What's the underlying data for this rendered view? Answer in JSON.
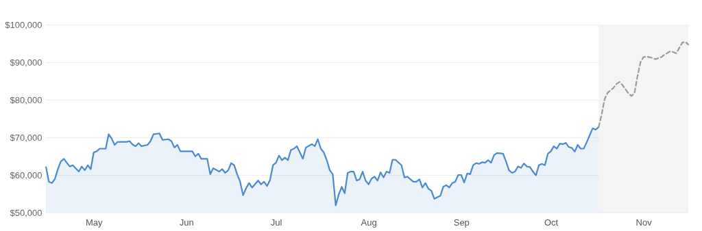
{
  "chart_data": {
    "type": "area",
    "grid": "y",
    "xlim": [
      "--04-15",
      "--11-16"
    ],
    "xticks": [
      {
        "value": "--05-01",
        "label": "May"
      },
      {
        "value": "--06-01",
        "label": "Jun"
      },
      {
        "value": "--07-01",
        "label": "Jul"
      },
      {
        "value": "--08-01",
        "label": "Aug"
      },
      {
        "value": "--09-01",
        "label": "Sep"
      },
      {
        "value": "--10-01",
        "label": "Oct"
      },
      {
        "value": "--11-01",
        "label": "Nov"
      }
    ],
    "ylim": [
      50000,
      100000
    ],
    "yticks": [
      {
        "value": 50000,
        "label": "$50,000"
      },
      {
        "value": 60000,
        "label": "$60,000"
      },
      {
        "value": 70000,
        "label": "$70,000"
      },
      {
        "value": 80000,
        "label": "$80,000"
      },
      {
        "value": 90000,
        "label": "$90,000"
      },
      {
        "value": 100000,
        "label": "$100,000"
      }
    ],
    "bands": [
      {
        "axis": "x",
        "from": "--10-17",
        "to": "--11-16",
        "color": "#f4f4f4"
      }
    ],
    "series": [
      {
        "color": "#4a88cf",
        "x": [
          "--04-15",
          "--04-16",
          "--04-17",
          "--04-18",
          "--04-19",
          "--04-20",
          "--04-21",
          "--04-22",
          "--04-23",
          "--04-24",
          "--04-26",
          "--04-27",
          "--04-28",
          "--04-29",
          "--04-30",
          "--05-01",
          "--05-02",
          "--05-03",
          "--05-05",
          "--05-06",
          "--05-07",
          "--05-08",
          "--05-09",
          "--05-12",
          "--05-13",
          "--05-14",
          "--05-15",
          "--05-16",
          "--05-17",
          "--05-19",
          "--05-20",
          "--05-21",
          "--05-23",
          "--05-24",
          "--05-26",
          "--05-27",
          "--05-28",
          "--05-29",
          "--05-30",
          "--06-01",
          "--06-03",
          "--06-04",
          "--06-05",
          "--06-06",
          "--06-08",
          "--06-09",
          "--06-10",
          "--06-12",
          "--06-13",
          "--06-14",
          "--06-15",
          "--06-16",
          "--06-17",
          "--06-18",
          "--06-19",
          "--06-20",
          "--06-21",
          "--06-22",
          "--06-23",
          "--06-25",
          "--06-26",
          "--06-27",
          "--06-28",
          "--06-29",
          "--06-30",
          "--07-01",
          "--07-02",
          "--07-03",
          "--07-04",
          "--07-05",
          "--07-06",
          "--07-07",
          "--07-08",
          "--07-09",
          "--07-10",
          "--07-11",
          "--07-13",
          "--07-14",
          "--07-15",
          "--07-16",
          "--07-17",
          "--07-18",
          "--07-19",
          "--07-20",
          "--07-21",
          "--07-22",
          "--07-23",
          "--07-24",
          "--07-25",
          "--07-26",
          "--07-27",
          "--07-28",
          "--07-29",
          "--07-30",
          "--07-31",
          "--08-01",
          "--08-02",
          "--08-03",
          "--08-04",
          "--08-05",
          "--08-06",
          "--08-07",
          "--08-08",
          "--08-09",
          "--08-10",
          "--08-12",
          "--08-13",
          "--08-14",
          "--08-15",
          "--08-16",
          "--08-17",
          "--08-18",
          "--08-19",
          "--08-20",
          "--08-21",
          "--08-22",
          "--08-23",
          "--08-24",
          "--08-25",
          "--08-26",
          "--08-27",
          "--08-28",
          "--08-29",
          "--08-30",
          "--08-31",
          "--09-01",
          "--09-02",
          "--09-03",
          "--09-04",
          "--09-05",
          "--09-06",
          "--09-07",
          "--09-08",
          "--09-09",
          "--09-10",
          "--09-11",
          "--09-12",
          "--09-13",
          "--09-15",
          "--09-16",
          "--09-17",
          "--09-18",
          "--09-19",
          "--09-20",
          "--09-21",
          "--09-22",
          "--09-23",
          "--09-24",
          "--09-25",
          "--09-26",
          "--09-27",
          "--09-28",
          "--09-29",
          "--09-30",
          "--10-01",
          "--10-02",
          "--10-03",
          "--10-04",
          "--10-05",
          "--10-06",
          "--10-07",
          "--10-08",
          "--10-09",
          "--10-10",
          "--10-11",
          "--10-12",
          "--10-13",
          "--10-15",
          "--10-16",
          "--10-17"
        ],
        "values": [
          62250,
          58200,
          57850,
          58950,
          61550,
          63600,
          64300,
          63250,
          62250,
          62600,
          60900,
          62250,
          61250,
          62600,
          61550,
          66000,
          66300,
          67000,
          67000,
          70850,
          69700,
          68000,
          68800,
          68800,
          69000,
          68100,
          67650,
          68450,
          67650,
          68000,
          69000,
          70850,
          71050,
          69350,
          69500,
          69000,
          67300,
          68000,
          66300,
          66300,
          66300,
          64950,
          65650,
          64300,
          64300,
          60200,
          61800,
          60900,
          61550,
          60550,
          61250,
          63150,
          62600,
          60200,
          58200,
          54600,
          56500,
          57850,
          56650,
          58500,
          57500,
          58200,
          57050,
          58650,
          62600,
          63250,
          65150,
          63950,
          64600,
          63950,
          66650,
          67000,
          67650,
          66000,
          64300,
          67300,
          68200,
          67650,
          69500,
          67000,
          66000,
          63950,
          61250,
          60200,
          51900,
          54800,
          56850,
          55150,
          60550,
          60900,
          60900,
          58500,
          58850,
          60900,
          58500,
          57500,
          59050,
          59550,
          58500,
          60700,
          59350,
          60900,
          60550,
          64050,
          64050,
          62600,
          59350,
          59550,
          58850,
          58200,
          58200,
          58850,
          56650,
          57850,
          56350,
          55800,
          53650,
          54100,
          54450,
          56850,
          57300,
          56650,
          57850,
          58200,
          60000,
          60000,
          58000,
          60400,
          60200,
          62600,
          63150,
          62950,
          63400,
          63250,
          63950,
          63250,
          65300,
          65850,
          65650,
          63600,
          61250,
          60550,
          60900,
          62250,
          61900,
          63050,
          62250,
          62100,
          60900,
          59900,
          62600,
          62950,
          62600,
          65650,
          66300,
          67650,
          67000,
          68350,
          68200,
          68550,
          67450,
          67200,
          66200,
          68000,
          67000,
          67000,
          68700,
          72400,
          72050,
          72750
        ]
      },
      {
        "type": "line",
        "color": "#999999",
        "line_style": "dashed",
        "x": [
          "--10-17",
          "--10-18",
          "--10-19",
          "--10-20",
          "--10-22",
          "--10-23",
          "--10-24",
          "--10-25",
          "--10-27",
          "--10-28",
          "--10-29",
          "--10-30",
          "--10-31",
          "--11-01",
          "--11-02",
          "--11-04",
          "--11-05",
          "--11-07",
          "--11-08",
          "--11-10",
          "--11-11",
          "--11-12",
          "--11-13",
          "--11-14",
          "--11-15",
          "--11-16"
        ],
        "values": [
          72750,
          76100,
          80200,
          81850,
          83200,
          84250,
          84750,
          83900,
          81650,
          81000,
          81850,
          86250,
          90000,
          91350,
          91500,
          91150,
          90800,
          91350,
          92000,
          92900,
          92700,
          92350,
          93850,
          95200,
          95400,
          94700
        ]
      }
    ]
  }
}
